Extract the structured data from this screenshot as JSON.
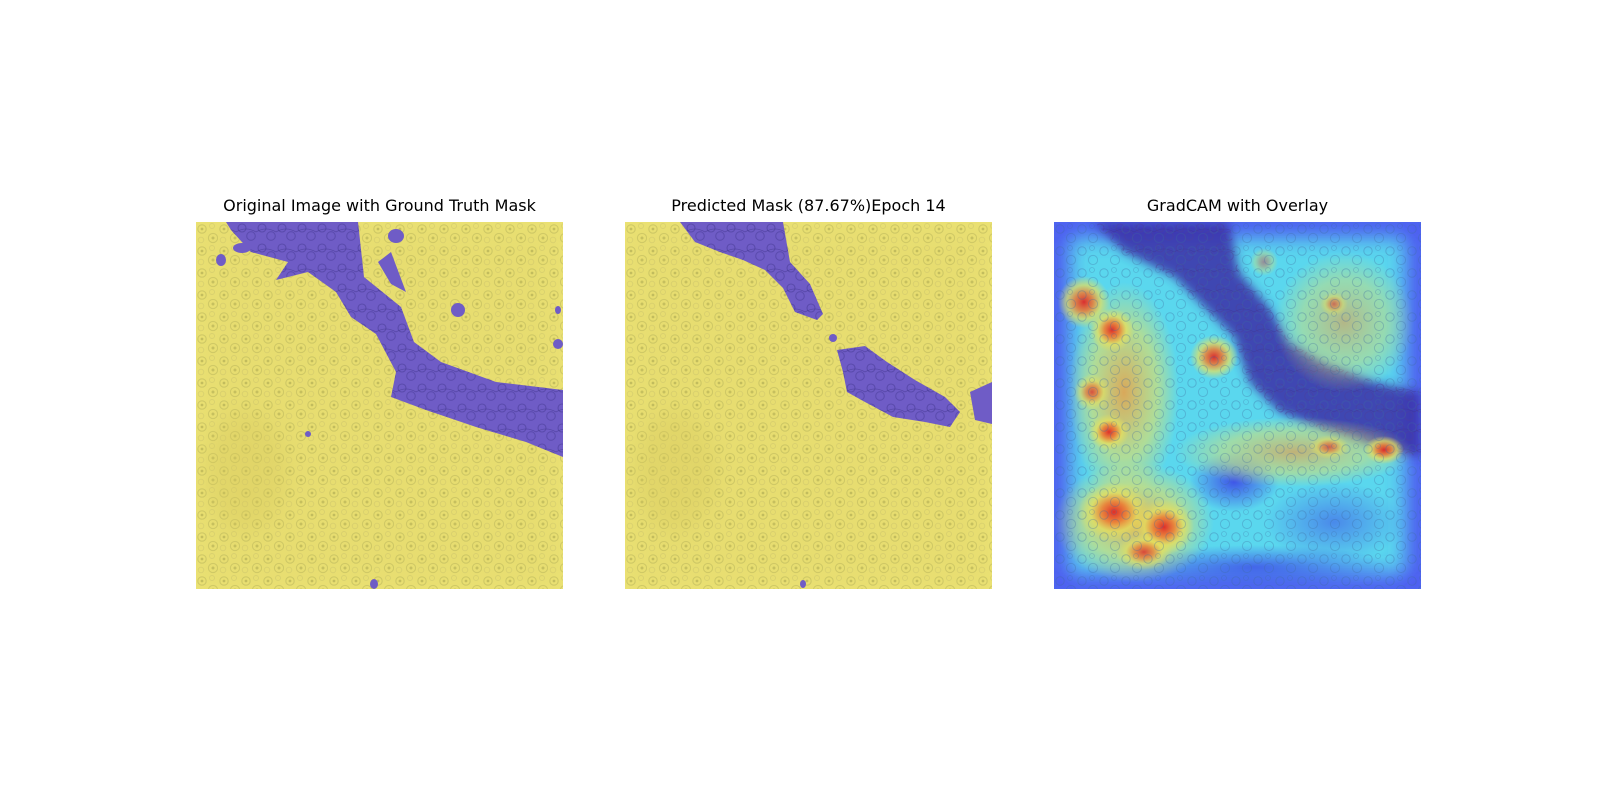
{
  "figure": {
    "panels": [
      {
        "title": "Original Image with Ground Truth Mask"
      },
      {
        "title": "Predicted Mask (87.67%)Epoch 14"
      },
      {
        "title": "GradCAM with Overlay"
      }
    ],
    "colors": {
      "tissue_yellow": "#ece374",
      "mask_purple": "#6f5cc6",
      "heat_blue": "#4b4cf0",
      "heat_cyan": "#58d9ee",
      "heat_yellow": "#e8e05a",
      "heat_red": "#e23a2a"
    }
  }
}
